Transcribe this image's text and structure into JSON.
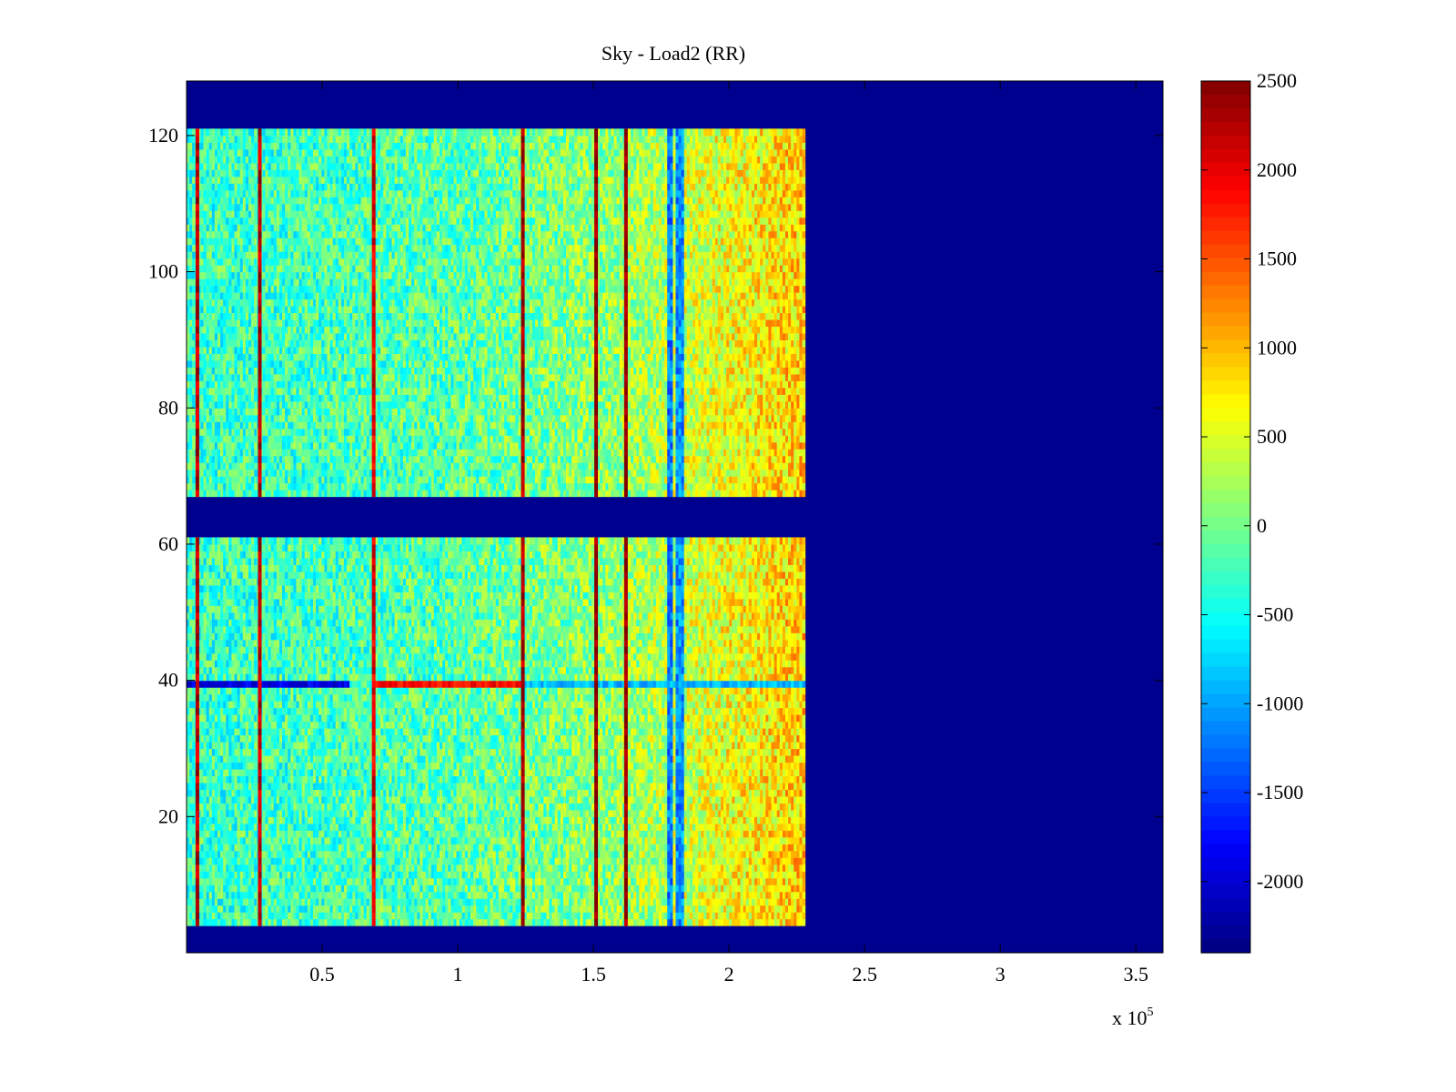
{
  "chart_data": {
    "type": "heatmap",
    "title": "Sky - Load2 (RR)",
    "xlabel": "",
    "ylabel": "",
    "x_multiplier_label": "x 10",
    "x_multiplier_exponent": "5",
    "xlim": [
      0,
      3.6
    ],
    "ylim": [
      0,
      128
    ],
    "x_ticks": [
      0.5,
      1,
      1.5,
      2,
      2.5,
      3,
      3.5
    ],
    "x_tick_labels": [
      "0.5",
      "1",
      "1.5",
      "2",
      "2.5",
      "3",
      "3.5"
    ],
    "y_ticks": [
      20,
      40,
      60,
      80,
      100,
      120
    ],
    "y_tick_labels": [
      "20",
      "40",
      "60",
      "80",
      "100",
      "120"
    ],
    "grid": false,
    "colormap": "jet",
    "background_value": -2400,
    "clim": [
      -2400,
      2500
    ],
    "colorbar": {
      "ticks": [
        2500,
        2000,
        1500,
        1000,
        500,
        0,
        -500,
        -1000,
        -1500,
        -2000
      ],
      "tick_labels": [
        "2500",
        "2000",
        "1500",
        "1000",
        "500",
        "0",
        "-500",
        "-1000",
        "-1500",
        "-2000"
      ]
    },
    "data_blocks": [
      {
        "name": "upper block",
        "x_range": [
          0,
          2.28
        ],
        "y_range": [
          67,
          121
        ]
      },
      {
        "name": "lower block",
        "x_range": [
          0,
          2.28
        ],
        "y_range": [
          4,
          61
        ]
      }
    ],
    "bright_columns": [
      {
        "x": 0.04,
        "value": 2200
      },
      {
        "x": 0.27,
        "value": 2200
      },
      {
        "x": 0.69,
        "value": 2000
      },
      {
        "x": 1.24,
        "value": 2300
      },
      {
        "x": 1.51,
        "value": 2400
      },
      {
        "x": 1.62,
        "value": 2400
      }
    ],
    "dark_columns": [
      {
        "x": 1.78,
        "value": -1200
      },
      {
        "x": 1.82,
        "value": -1100
      }
    ],
    "anomaly_row": {
      "y": 39,
      "segments": [
        {
          "x_range": [
            0,
            0.6
          ],
          "value": -1900
        },
        {
          "x_range": [
            0.69,
            1.24
          ],
          "value": 1900
        },
        {
          "x_range": [
            1.24,
            2.28
          ],
          "value": -900
        }
      ]
    },
    "value_trend": {
      "x": [
        0,
        1.0,
        1.6,
        2.0,
        2.28
      ],
      "value": [
        -300,
        -150,
        150,
        600,
        900
      ]
    }
  }
}
